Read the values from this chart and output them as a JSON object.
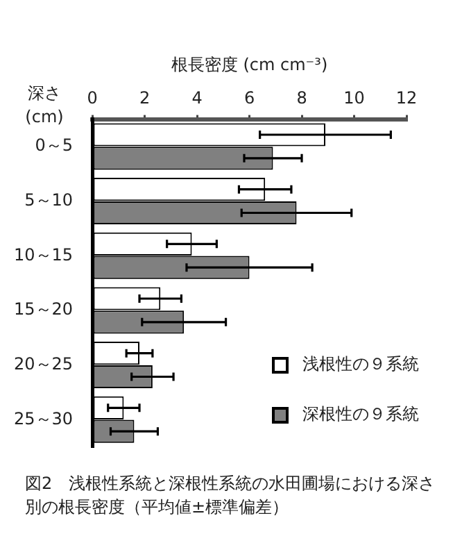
{
  "chart_data": {
    "type": "bar",
    "orientation": "horizontal",
    "xlabel": "根長密度 (cm cm⁻³)",
    "ylabel": "深さ\n(cm)",
    "categories": [
      "0～5",
      "5～10",
      "10～15",
      "15～20",
      "20～25",
      "25～30"
    ],
    "series": [
      {
        "name": "浅根性の９系統",
        "color": "#ffffff",
        "values": [
          8.9,
          6.6,
          3.8,
          2.6,
          1.8,
          1.2
        ],
        "errors": [
          2.5,
          1.0,
          0.95,
          0.8,
          0.5,
          0.6
        ]
      },
      {
        "name": "深根性の９系統",
        "color": "#808080",
        "values": [
          6.9,
          7.8,
          6.0,
          3.5,
          2.3,
          1.6
        ],
        "errors": [
          1.1,
          2.1,
          2.4,
          1.6,
          0.8,
          0.9
        ]
      }
    ],
    "xlim": [
      0,
      12
    ],
    "xticks": [
      0,
      2,
      4,
      6,
      8,
      10,
      12
    ],
    "grid": false,
    "legend": "bottom right",
    "annotations": [
      "図2　浅根性系統と深根性系統の水田圃場における深さ別の根長密度（平均値±標準偏差）"
    ]
  }
}
